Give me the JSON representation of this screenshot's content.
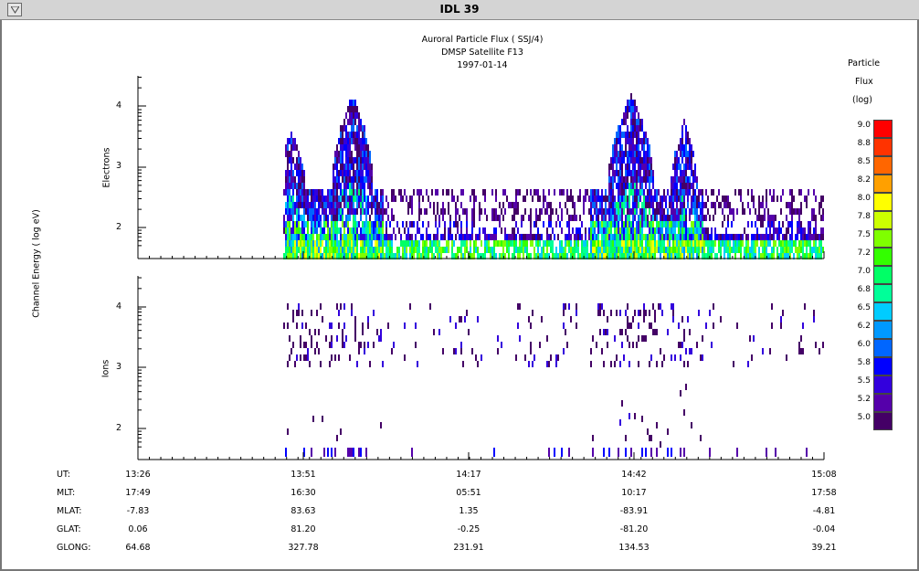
{
  "window": {
    "title": "IDL 39",
    "menu_icon": "down-triangle-icon"
  },
  "plot": {
    "title_lines": [
      "Auroral Particle Flux ( SSJ/4)",
      "DMSP Satellite F13",
      "1997-01-14"
    ],
    "ylabel": "Channel Energy ( log eV)",
    "panels": [
      {
        "name": "Electrons",
        "yticks": [
          "4",
          "3",
          "2"
        ]
      },
      {
        "name": "Ions",
        "yticks": [
          "4",
          "3",
          "2"
        ]
      }
    ]
  },
  "legend": {
    "title_lines": [
      "Particle",
      "Flux",
      "(log)"
    ],
    "levels": [
      "9.0",
      "8.8",
      "8.5",
      "8.2",
      "8.0",
      "7.8",
      "7.5",
      "7.2",
      "7.0",
      "6.8",
      "6.5",
      "6.2",
      "6.0",
      "5.8",
      "5.5",
      "5.2",
      "5.0"
    ],
    "colors": [
      "#ff0000",
      "#ff3300",
      "#ff6600",
      "#ffa000",
      "#ffff00",
      "#ccff00",
      "#7fff00",
      "#33ff00",
      "#00ff66",
      "#00ff99",
      "#00ccff",
      "#0099ff",
      "#0066ff",
      "#0000ff",
      "#3300dd",
      "#5500aa",
      "#440066"
    ]
  },
  "axis_table": {
    "rows": [
      {
        "label": "UT:",
        "values": [
          "13:26",
          "13:51",
          "14:17",
          "14:42",
          "15:08"
        ]
      },
      {
        "label": "MLT:",
        "values": [
          "17:49",
          "16:30",
          "05:51",
          "10:17",
          "17:58"
        ]
      },
      {
        "label": "MLAT:",
        "values": [
          "-7.83",
          "83.63",
          "1.35",
          "-83.91",
          "-4.81"
        ]
      },
      {
        "label": "GLAT:",
        "values": [
          "0.06",
          "81.20",
          "-0.25",
          "-81.20",
          "-0.04"
        ]
      },
      {
        "label": "GLONG:",
        "values": [
          "64.68",
          "327.78",
          "231.91",
          "134.53",
          "39.21"
        ]
      }
    ]
  }
}
